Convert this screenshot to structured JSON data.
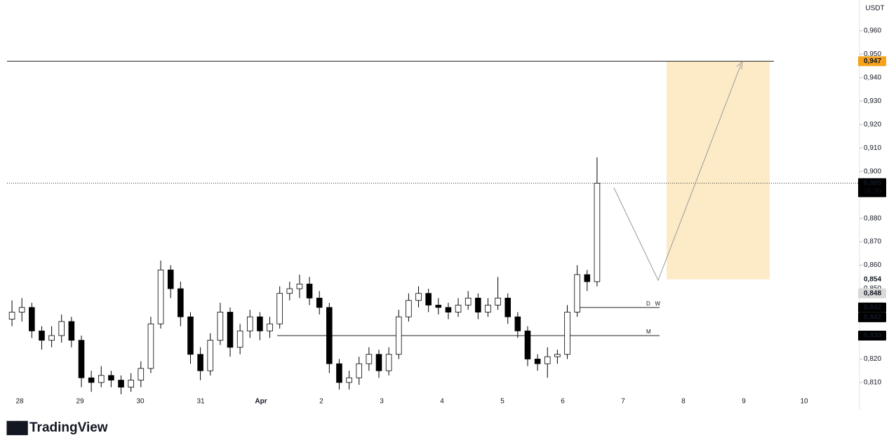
{
  "chart_data": {
    "type": "candlestick",
    "currency": "USDT",
    "logo": "TradingView",
    "up_color": "#ffffff",
    "down_color": "#000000",
    "ylim": [
      0.8052,
      0.9731
    ],
    "yticks": [
      {
        "value": 0.96,
        "label": "0,960"
      },
      {
        "value": 0.95,
        "label": "0,950"
      },
      {
        "value": 0.94,
        "label": "0,940"
      },
      {
        "value": 0.93,
        "label": "0,930"
      },
      {
        "value": 0.92,
        "label": "0,920"
      },
      {
        "value": 0.91,
        "label": "0,910"
      },
      {
        "value": 0.9,
        "label": "0,900"
      },
      {
        "value": 0.88,
        "label": "0,880"
      },
      {
        "value": 0.87,
        "label": "0,870"
      },
      {
        "value": 0.86,
        "label": "0,860"
      },
      {
        "value": 0.85,
        "label": "0,850"
      },
      {
        "value": 0.82,
        "label": "0,820"
      },
      {
        "value": 0.81,
        "label": "0,810"
      }
    ],
    "xlabels": [
      "28",
      "29",
      "30",
      "31",
      "Apr",
      "2",
      "3",
      "4",
      "5",
      "6",
      "7",
      "8",
      "9",
      "10"
    ],
    "candles": {
      "open": [
        0.837,
        0.84,
        0.842,
        0.832,
        0.828,
        0.83,
        0.836,
        0.828,
        0.812,
        0.81,
        0.813,
        0.811,
        0.808,
        0.811,
        0.816,
        0.835,
        0.858,
        0.85,
        0.838,
        0.822,
        0.815,
        0.828,
        0.84,
        0.825,
        0.832,
        0.838,
        0.832,
        0.835,
        0.848,
        0.85,
        0.852,
        0.846,
        0.842,
        0.818,
        0.81,
        0.812,
        0.818,
        0.822,
        0.815,
        0.822,
        0.838,
        0.845,
        0.848,
        0.843,
        0.842,
        0.84,
        0.843,
        0.846,
        0.84,
        0.843,
        0.846,
        0.838,
        0.832,
        0.82,
        0.818,
        0.821,
        0.822,
        0.84,
        0.856,
        0.853
      ],
      "high": [
        0.845,
        0.846,
        0.844,
        0.834,
        0.834,
        0.839,
        0.838,
        0.83,
        0.815,
        0.817,
        0.815,
        0.813,
        0.814,
        0.819,
        0.838,
        0.862,
        0.86,
        0.853,
        0.84,
        0.825,
        0.831,
        0.844,
        0.842,
        0.835,
        0.841,
        0.84,
        0.838,
        0.851,
        0.853,
        0.856,
        0.855,
        0.849,
        0.844,
        0.82,
        0.815,
        0.821,
        0.825,
        0.824,
        0.825,
        0.841,
        0.848,
        0.851,
        0.85,
        0.846,
        0.844,
        0.846,
        0.849,
        0.848,
        0.846,
        0.855,
        0.848,
        0.84,
        0.834,
        0.822,
        0.825,
        0.824,
        0.843,
        0.86,
        0.858,
        0.906
      ],
      "low": [
        0.834,
        0.836,
        0.829,
        0.824,
        0.825,
        0.827,
        0.825,
        0.808,
        0.806,
        0.808,
        0.808,
        0.805,
        0.806,
        0.808,
        0.814,
        0.833,
        0.846,
        0.834,
        0.818,
        0.811,
        0.813,
        0.826,
        0.821,
        0.822,
        0.829,
        0.828,
        0.829,
        0.833,
        0.845,
        0.846,
        0.843,
        0.839,
        0.814,
        0.807,
        0.807,
        0.809,
        0.815,
        0.812,
        0.813,
        0.82,
        0.836,
        0.842,
        0.84,
        0.839,
        0.837,
        0.838,
        0.841,
        0.837,
        0.838,
        0.841,
        0.835,
        0.829,
        0.817,
        0.815,
        0.812,
        0.818,
        0.82,
        0.838,
        0.849,
        0.851
      ],
      "close": [
        0.84,
        0.842,
        0.832,
        0.828,
        0.83,
        0.836,
        0.828,
        0.812,
        0.81,
        0.813,
        0.811,
        0.808,
        0.811,
        0.816,
        0.835,
        0.858,
        0.85,
        0.838,
        0.822,
        0.815,
        0.828,
        0.84,
        0.825,
        0.832,
        0.838,
        0.832,
        0.835,
        0.848,
        0.85,
        0.852,
        0.846,
        0.842,
        0.818,
        0.81,
        0.812,
        0.818,
        0.822,
        0.815,
        0.822,
        0.838,
        0.845,
        0.848,
        0.843,
        0.842,
        0.84,
        0.843,
        0.846,
        0.84,
        0.843,
        0.846,
        0.838,
        0.832,
        0.82,
        0.818,
        0.821,
        0.822,
        0.84,
        0.856,
        0.853,
        0.895
      ]
    },
    "levels": [
      {
        "value": 0.947
      },
      {
        "value": 0.842,
        "label": "D   W"
      },
      {
        "value": 0.83,
        "label": "M"
      }
    ],
    "target_zone": {
      "from": 0.854,
      "to": 0.947,
      "color": "#fdebc8"
    },
    "price_tags": [
      {
        "value": 0.947,
        "label": "0,947",
        "color": "#f7a21b"
      },
      {
        "value": 0.895,
        "label": "0,895",
        "sublabel": "16:20",
        "color": "#000000"
      },
      {
        "value": 0.854,
        "label": "0,854"
      },
      {
        "value": 0.848,
        "label": "0,848",
        "color": "#d9d9d9"
      },
      {
        "value": 0.842,
        "label": "0,842",
        "color": "#000000"
      },
      {
        "value": 0.842,
        "label": "0,842",
        "color": "#000000"
      },
      {
        "value": 0.83,
        "label": "0,830",
        "color": "#000000"
      }
    ]
  }
}
